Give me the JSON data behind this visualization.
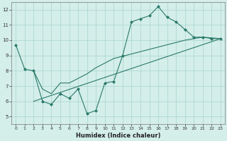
{
  "xlabel": "Humidex (Indice chaleur)",
  "xlim": [
    -0.5,
    23.5
  ],
  "ylim": [
    4.5,
    12.5
  ],
  "xticks": [
    0,
    1,
    2,
    3,
    4,
    5,
    6,
    7,
    8,
    9,
    10,
    11,
    12,
    13,
    14,
    15,
    16,
    17,
    18,
    19,
    20,
    21,
    22,
    23
  ],
  "yticks": [
    5,
    6,
    7,
    8,
    9,
    10,
    11,
    12
  ],
  "bg_color": "#d4eeea",
  "grid_color": "#a8d4ce",
  "line_color": "#2a7a6a",
  "series": [
    {
      "x": [
        0,
        1,
        2,
        3,
        4,
        5,
        6,
        7,
        8,
        9,
        10,
        11,
        12,
        13,
        14,
        15,
        16,
        17,
        18,
        19,
        20,
        21,
        22,
        23
      ],
      "y": [
        9.7,
        8.1,
        8.0,
        6.0,
        5.8,
        6.5,
        6.2,
        6.8,
        5.2,
        5.4,
        7.2,
        7.3,
        9.0,
        11.2,
        11.4,
        11.6,
        12.2,
        11.5,
        11.2,
        10.7,
        10.2,
        10.2,
        10.1,
        10.1
      ],
      "marker": true
    },
    {
      "x": [
        2,
        3,
        4,
        5,
        6,
        7,
        8,
        9,
        10,
        11,
        19,
        20,
        21,
        22,
        23
      ],
      "y": [
        8.0,
        6.8,
        6.5,
        7.2,
        7.2,
        7.5,
        7.8,
        8.2,
        8.5,
        8.8,
        10.0,
        10.1,
        10.2,
        10.15,
        10.1
      ],
      "marker": false
    },
    {
      "x": [
        2,
        23
      ],
      "y": [
        6.0,
        10.1
      ],
      "marker": false
    }
  ]
}
